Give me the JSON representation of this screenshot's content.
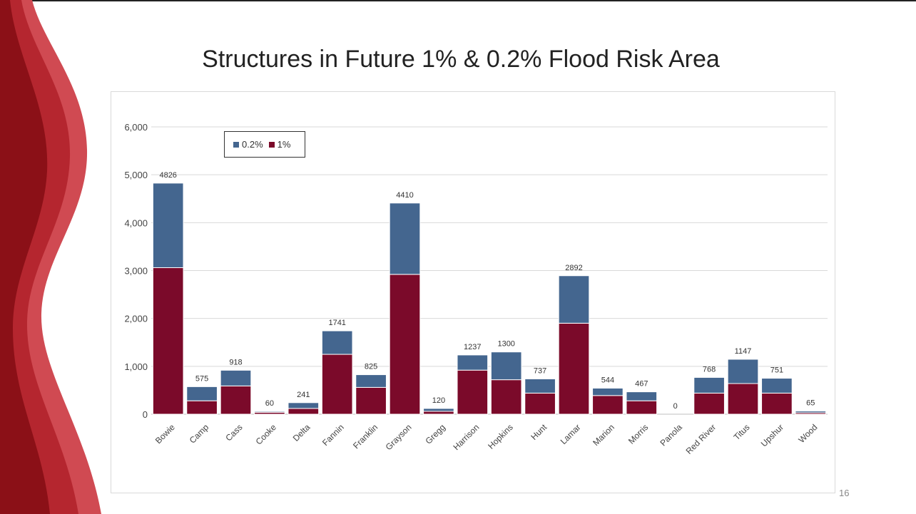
{
  "slide": {
    "title": "Structures in Future 1% & 0.2% Flood Risk Area",
    "page_number": "16"
  },
  "colors": {
    "series_1pct": "#7b0a2a",
    "series_02pct": "#44668f",
    "decor_dark": "#8b1017",
    "decor_mid": "#b5262f",
    "decor_light": "#d04a52"
  },
  "chart_data": {
    "type": "bar",
    "stacked": true,
    "categories": [
      "Bowie",
      "Camp",
      "Cass",
      "Cooke",
      "Delta",
      "Fannin",
      "Franklin",
      "Grayson",
      "Gregg",
      "Harrison",
      "Hopkins",
      "Hunt",
      "Lamar",
      "Marion",
      "Morris",
      "Panola",
      "Red River",
      "Titus",
      "Upshur",
      "Wood"
    ],
    "series": [
      {
        "name": "1%",
        "values": [
          3060,
          280,
          590,
          40,
          120,
          1250,
          560,
          2920,
          60,
          920,
          720,
          440,
          1900,
          390,
          280,
          0,
          440,
          640,
          440,
          30
        ]
      },
      {
        "name": "0.2%",
        "values": [
          1766,
          295,
          328,
          20,
          121,
          491,
          265,
          1490,
          60,
          317,
          580,
          297,
          992,
          154,
          187,
          0,
          328,
          507,
          311,
          35
        ]
      }
    ],
    "totals": [
      4826,
      575,
      918,
      60,
      241,
      1741,
      825,
      4410,
      120,
      1237,
      1300,
      737,
      2892,
      544,
      467,
      0,
      768,
      1147,
      751,
      65
    ],
    "total_labels": [
      "4826",
      "575",
      "918",
      "60",
      "241",
      "1741",
      "825",
      "4410",
      "120",
      "1237",
      "1300",
      "737",
      "2892",
      "544",
      "467",
      "0",
      "768",
      "1147",
      "751",
      "65"
    ],
    "ylim": [
      0,
      6000
    ],
    "yticks": [
      "0",
      "1,000",
      "2,000",
      "3,000",
      "4,000",
      "5,000",
      "6,000"
    ],
    "legend": {
      "position": "top-left",
      "items": [
        "0.2%",
        "1%"
      ]
    },
    "grid": true
  }
}
